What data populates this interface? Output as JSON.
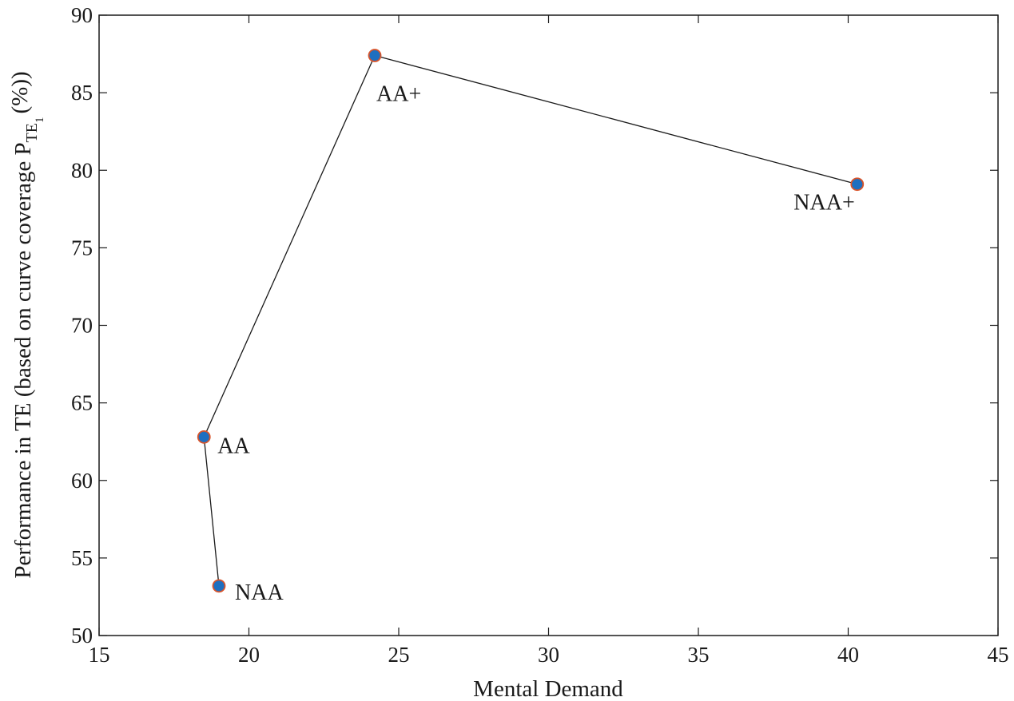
{
  "chart_data": {
    "type": "line",
    "xlabel": "Mental Demand",
    "ylabel": {
      "prefix": "Performance in TE (based on curve coverage P",
      "sub": "TE",
      "subsub": "1",
      "suffix": "(%))"
    },
    "xlim": [
      15,
      45
    ],
    "ylim": [
      50,
      90
    ],
    "xticks": [
      15,
      20,
      25,
      30,
      35,
      40,
      45
    ],
    "yticks": [
      50,
      55,
      60,
      65,
      70,
      75,
      80,
      85,
      90
    ],
    "grid": false,
    "series": [
      {
        "points": [
          {
            "label": "NAA",
            "x": 19.0,
            "y": 53.2
          },
          {
            "label": "AA",
            "x": 18.5,
            "y": 62.8
          },
          {
            "label": "AA+",
            "x": 24.2,
            "y": 87.4
          },
          {
            "label": "NAA+",
            "x": 40.3,
            "y": 79.1
          }
        ]
      }
    ],
    "colors": {
      "marker_fill": "#1f6fc0",
      "marker_edge": "#d9542a",
      "line": "#1a1a1a",
      "axis": "#1a1a1a"
    }
  }
}
